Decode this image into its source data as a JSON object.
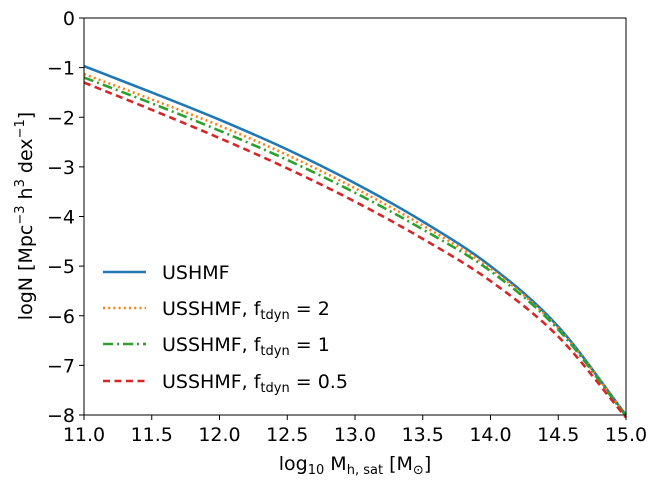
{
  "chart_data": {
    "type": "line",
    "xlabel": {
      "prefix": "log",
      "sub1": "10",
      "mid": " M",
      "sub2": "h, sat",
      "suffix": " [M",
      "sub3": "⊙",
      "end": "]"
    },
    "ylabel": {
      "prefix": "logN [Mpc",
      "sup1": "−3",
      "mid": " h",
      "sup2": "3",
      "mid2": " dex",
      "sup3": "−1",
      "end": "]"
    },
    "xlim": [
      11.0,
      15.0
    ],
    "ylim": [
      -8,
      0
    ],
    "xticks": [
      11.0,
      11.5,
      12.0,
      12.5,
      13.0,
      13.5,
      14.0,
      14.5,
      15.0
    ],
    "xtick_labels": [
      "11.0",
      "11.5",
      "12.0",
      "12.5",
      "13.0",
      "13.5",
      "14.0",
      "14.5",
      "15.0"
    ],
    "yticks": [
      0,
      -1,
      -2,
      -3,
      -4,
      -5,
      -6,
      -7,
      -8
    ],
    "ytick_labels": [
      "0",
      "−1",
      "−2",
      "−3",
      "−4",
      "−5",
      "−6",
      "−7",
      "−8"
    ],
    "grid": false,
    "legend_position": "lower-left",
    "x": [
      11.0,
      11.5,
      12.0,
      12.5,
      13.0,
      13.5,
      14.0,
      14.5,
      15.0
    ],
    "series": [
      {
        "name": "USHMF",
        "sub": "",
        "suffix": "",
        "color": "#1f77b4",
        "style": "solid",
        "values": [
          -0.97,
          -1.5,
          -2.05,
          -2.65,
          -3.33,
          -4.1,
          -5.0,
          -6.22,
          -8.0
        ]
      },
      {
        "name": "USSHMF, f",
        "sub": "tdyn",
        "suffix": " = 2",
        "color": "#ff7f0e",
        "style": "dotted",
        "values": [
          -1.13,
          -1.64,
          -2.17,
          -2.76,
          -3.43,
          -4.18,
          -5.05,
          -6.25,
          -8.0
        ]
      },
      {
        "name": "USSHMF, f",
        "sub": "tdyn",
        "suffix": " = 1",
        "color": "#2ca02c",
        "style": "dashdot",
        "values": [
          -1.2,
          -1.72,
          -2.27,
          -2.86,
          -3.52,
          -4.26,
          -5.1,
          -6.28,
          -8.02
        ]
      },
      {
        "name": "USSHMF, f",
        "sub": "tdyn",
        "suffix": " = 0.5",
        "color": "#d62728",
        "style": "dashed",
        "values": [
          -1.3,
          -1.85,
          -2.42,
          -3.03,
          -3.7,
          -4.45,
          -5.3,
          -6.42,
          -8.05
        ]
      }
    ]
  }
}
